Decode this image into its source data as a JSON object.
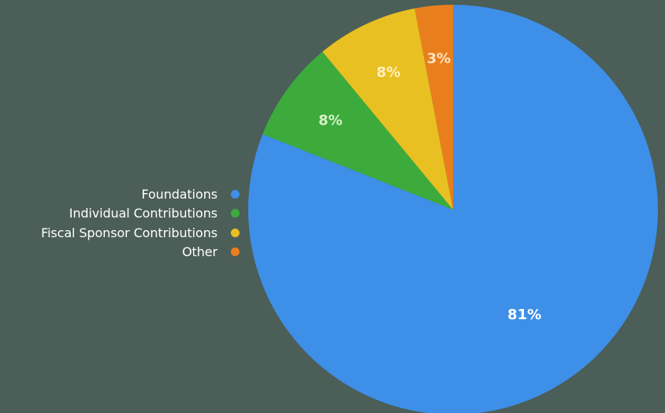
{
  "chart_data": {
    "type": "pie",
    "title": "",
    "legend_position": "left",
    "categories": [
      "Foundations",
      "Individual Contributions",
      "Fiscal Sponsor Contributions",
      "Other"
    ],
    "values": [
      81,
      8,
      8,
      3
    ],
    "labels": [
      "81%",
      "8%",
      "8%",
      "3%"
    ],
    "colors": [
      "#3e8fe8",
      "#3cab3c",
      "#e9c021",
      "#e97f1c"
    ],
    "label_colors": [
      "#ffffff",
      "#d7f2c8",
      "#fff1c0",
      "#ffe2c2"
    ]
  }
}
